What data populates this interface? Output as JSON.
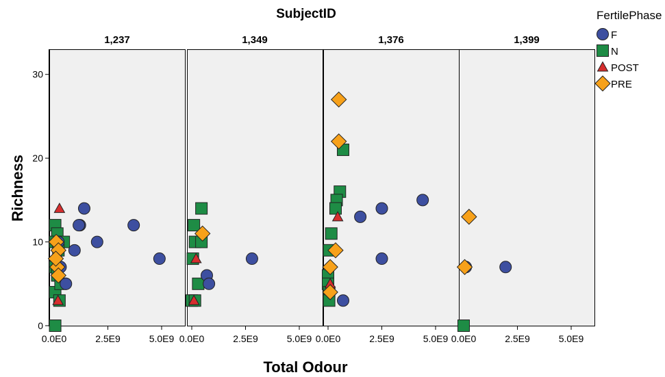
{
  "chart_data": {
    "type": "scatter",
    "facet_title": "SubjectID",
    "xlabel": "Total Odour",
    "ylabel": "Richness",
    "xlim": [
      0,
      5000000000
    ],
    "ylim": [
      0,
      33
    ],
    "x_ticks": [
      0,
      2500000000,
      5000000000
    ],
    "x_tick_labels": [
      "0.0E0",
      "2.5E9",
      "5.0E9"
    ],
    "y_ticks": [
      0,
      10,
      20,
      30
    ],
    "y_tick_labels": [
      "0",
      "10",
      "20",
      "30"
    ],
    "legend_title": "FertilePhase",
    "legend_position": "top-right",
    "series_styles": [
      {
        "name": "F",
        "marker": "circle",
        "color": "#3d4fa0"
      },
      {
        "name": "N",
        "marker": "square",
        "color": "#1e8c45"
      },
      {
        "name": "POST",
        "marker": "triangle",
        "color": "#d62e2e"
      },
      {
        "name": "PRE",
        "marker": "diamond",
        "color": "#f7a11a"
      }
    ],
    "panels": [
      {
        "title": "1,237",
        "series": [
          {
            "name": "F",
            "points": [
              [
                1400000000,
                14
              ],
              [
                1200000000,
                12
              ],
              [
                1150000000,
                12
              ],
              [
                3700000000,
                12
              ],
              [
                2000000000,
                10
              ],
              [
                950000000,
                9
              ],
              [
                4900000000,
                8
              ],
              [
                550000000,
                5
              ],
              [
                200000000,
                10
              ],
              [
                300000000,
                7
              ]
            ]
          },
          {
            "name": "N",
            "points": [
              [
                50000000,
                12
              ],
              [
                150000000,
                11
              ],
              [
                450000000,
                10
              ],
              [
                50000000,
                10
              ],
              [
                200000000,
                9
              ],
              [
                50000000,
                7
              ],
              [
                150000000,
                6
              ],
              [
                50000000,
                4
              ],
              [
                250000000,
                3
              ],
              [
                50000000,
                0
              ],
              [
                300000000,
                5
              ]
            ]
          },
          {
            "name": "POST",
            "points": [
              [
                250000000,
                14
              ],
              [
                180000000,
                3
              ]
            ]
          },
          {
            "name": "PRE",
            "points": [
              [
                100000000,
                10
              ],
              [
                200000000,
                9
              ],
              [
                150000000,
                7
              ],
              [
                200000000,
                6
              ],
              [
                80000000,
                8
              ]
            ]
          }
        ]
      },
      {
        "title": "1,349",
        "series": [
          {
            "name": "F",
            "points": [
              [
                700000000,
                6
              ],
              [
                800000000,
                5
              ],
              [
                2800000000,
                8
              ]
            ]
          },
          {
            "name": "N",
            "points": [
              [
                450000000,
                14
              ],
              [
                100000000,
                12
              ],
              [
                150000000,
                10
              ],
              [
                450000000,
                10
              ],
              [
                50000000,
                8
              ],
              [
                300000000,
                5
              ],
              [
                0,
                3
              ],
              [
                150000000,
                3
              ]
            ]
          },
          {
            "name": "POST",
            "points": [
              [
                200000000,
                8
              ],
              [
                100000000,
                3
              ]
            ]
          },
          {
            "name": "PRE",
            "points": [
              [
                500000000,
                11
              ]
            ]
          }
        ]
      },
      {
        "title": "1,376",
        "series": [
          {
            "name": "F",
            "points": [
              [
                1500000000,
                13
              ],
              [
                2500000000,
                14
              ],
              [
                4400000000,
                15
              ],
              [
                2500000000,
                8
              ],
              [
                700000000,
                3
              ]
            ]
          },
          {
            "name": "N",
            "points": [
              [
                700000000,
                21
              ],
              [
                550000000,
                16
              ],
              [
                400000000,
                15
              ],
              [
                350000000,
                14
              ],
              [
                150000000,
                11
              ],
              [
                50000000,
                9
              ],
              [
                0,
                6
              ],
              [
                0,
                5
              ],
              [
                50000000,
                4
              ],
              [
                50000000,
                3
              ]
            ]
          },
          {
            "name": "POST",
            "points": [
              [
                450000000,
                13
              ],
              [
                100000000,
                5
              ]
            ]
          },
          {
            "name": "PRE",
            "points": [
              [
                500000000,
                27
              ],
              [
                500000000,
                22
              ],
              [
                350000000,
                9
              ],
              [
                100000000,
                7
              ],
              [
                100000000,
                4
              ]
            ]
          }
        ]
      },
      {
        "title": "1,399",
        "series": [
          {
            "name": "F",
            "points": [
              [
                100000000,
                7
              ],
              [
                1950000000,
                7
              ]
            ]
          },
          {
            "name": "N",
            "points": [
              [
                0,
                0
              ]
            ]
          },
          {
            "name": "POST",
            "points": []
          },
          {
            "name": "PRE",
            "points": [
              [
                250000000,
                13
              ],
              [
                50000000,
                7
              ]
            ]
          }
        ]
      }
    ]
  }
}
